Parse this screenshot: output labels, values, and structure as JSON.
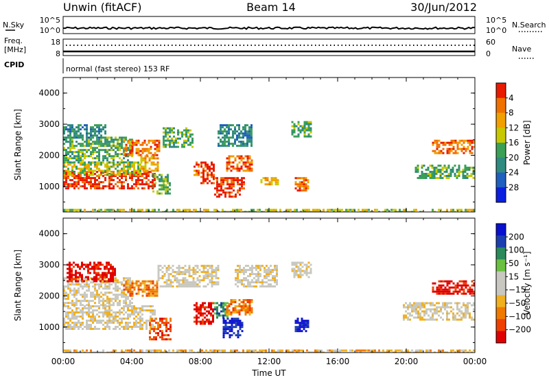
{
  "header": {
    "station": "Unwin (fitACF)",
    "beam": "Beam 14",
    "date": "30/Jun/2012"
  },
  "noise_panel": {
    "left_label": "N.Sky",
    "right_label": "N.Search",
    "left_ticks": [
      "10^5",
      "10^0"
    ],
    "right_ticks": [
      "10^5",
      "10^0"
    ]
  },
  "freq_panel": {
    "left_label_1": "Freq.",
    "left_label_2": "[MHz]",
    "right_label": "Nave",
    "left_ticks": [
      "18",
      "8"
    ],
    "right_ticks": [
      "60",
      "0"
    ]
  },
  "cpid_panel": {
    "label": "CPID",
    "text": "normal (fast stereo) 153 RF"
  },
  "colors": {
    "power_scale": [
      "#0a1fe0",
      "#1f5fbf",
      "#2f8a7f",
      "#3aa055",
      "#c8c800",
      "#f0a000",
      "#f07000",
      "#e81a00"
    ],
    "velocity_scale": [
      "#e00000",
      "#f04000",
      "#f07a00",
      "#f0b020",
      "#c8c8c0",
      "#c8c8c0",
      "#6ac040",
      "#2a8a5a",
      "#1c3fb0",
      "#0a10d0"
    ]
  },
  "chart_data": [
    {
      "type": "heatmap",
      "panel": "power",
      "xlabel": "",
      "ylabel": "Slant Range [km]",
      "xlim": [
        "00:00",
        "00:00"
      ],
      "ylim": [
        180,
        4500
      ],
      "yticks": [
        1000,
        2000,
        3000,
        4000
      ],
      "xticks": [
        "00:00",
        "04:00",
        "08:00",
        "12:00",
        "16:00",
        "20:00",
        "00:00"
      ],
      "colorbar": {
        "label": "Power [dB]",
        "ticks": [
          4,
          8,
          12,
          16,
          20,
          24,
          28
        ]
      },
      "regions": [
        {
          "t0": 0.0,
          "t1": 5.3,
          "r0": 950,
          "r1": 1500,
          "level": 7
        },
        {
          "t0": 0.0,
          "t1": 4.5,
          "r0": 1400,
          "r1": 1800,
          "level": 4
        },
        {
          "t0": 0.0,
          "t1": 4.0,
          "r0": 1800,
          "r1": 2600,
          "level": 3
        },
        {
          "t0": 0.0,
          "t1": 2.5,
          "r0": 2600,
          "r1": 3000,
          "level": 2
        },
        {
          "t0": 3.5,
          "t1": 5.6,
          "r0": 2000,
          "r1": 2500,
          "level": 6
        },
        {
          "t0": 4.5,
          "t1": 5.5,
          "r0": 1500,
          "r1": 2000,
          "level": 5
        },
        {
          "t0": 5.2,
          "t1": 6.2,
          "r0": 800,
          "r1": 1400,
          "level": 3
        },
        {
          "t0": 5.8,
          "t1": 7.5,
          "r0": 2300,
          "r1": 2900,
          "level": 3
        },
        {
          "t0": 7.6,
          "t1": 7.9,
          "r0": 1400,
          "r1": 1800,
          "level": 6
        },
        {
          "t0": 8.0,
          "t1": 8.8,
          "r0": 1100,
          "r1": 1800,
          "level": 7
        },
        {
          "t0": 8.8,
          "t1": 10.5,
          "r0": 700,
          "r1": 1300,
          "level": 7
        },
        {
          "t0": 9.0,
          "t1": 11.0,
          "r0": 2300,
          "r1": 3000,
          "level": 2
        },
        {
          "t0": 9.5,
          "t1": 11.0,
          "r0": 1500,
          "r1": 2000,
          "level": 6
        },
        {
          "t0": 11.5,
          "t1": 12.5,
          "r0": 1100,
          "r1": 1300,
          "level": 5
        },
        {
          "t0": 13.3,
          "t1": 14.5,
          "r0": 2600,
          "r1": 3100,
          "level": 3
        },
        {
          "t0": 13.5,
          "t1": 14.3,
          "r0": 850,
          "r1": 1300,
          "level": 6
        },
        {
          "t0": 20.5,
          "t1": 24.0,
          "r0": 1250,
          "r1": 1700,
          "level": 3
        },
        {
          "t0": 21.5,
          "t1": 24.0,
          "r0": 2050,
          "r1": 2500,
          "level": 6
        },
        {
          "t0": 0.0,
          "t1": 24.0,
          "r0": 180,
          "r1": 280,
          "level": 4
        }
      ]
    },
    {
      "type": "heatmap",
      "panel": "velocity",
      "xlabel": "Time UT",
      "ylabel": "Slant Range [km]",
      "xlim": [
        "00:00",
        "00:00"
      ],
      "ylim": [
        180,
        4500
      ],
      "yticks": [
        1000,
        2000,
        3000,
        4000
      ],
      "xticks": [
        "00:00",
        "04:00",
        "08:00",
        "12:00",
        "16:00",
        "20:00",
        "00:00"
      ],
      "colorbar": {
        "label": "Velocity [m s⁻¹]",
        "ticks": [
          200,
          100,
          50,
          15,
          -15,
          -50,
          -100,
          -200
        ]
      },
      "regions": [
        {
          "t0": 0.0,
          "t1": 5.3,
          "r0": 950,
          "r1": 1700,
          "level": 4
        },
        {
          "t0": 0.0,
          "t1": 4.0,
          "r0": 1700,
          "r1": 2600,
          "level": 4
        },
        {
          "t0": 0.2,
          "t1": 3.0,
          "r0": 2500,
          "r1": 3100,
          "level": 0
        },
        {
          "t0": 3.5,
          "t1": 5.5,
          "r0": 2000,
          "r1": 2500,
          "level": 2
        },
        {
          "t0": 5.0,
          "t1": 6.2,
          "r0": 600,
          "r1": 1300,
          "level": 1
        },
        {
          "t0": 5.5,
          "t1": 9.0,
          "r0": 2300,
          "r1": 3000,
          "level": 4
        },
        {
          "t0": 7.6,
          "t1": 8.8,
          "r0": 1100,
          "r1": 1800,
          "level": 0
        },
        {
          "t0": 8.8,
          "t1": 9.6,
          "r0": 1300,
          "r1": 1800,
          "level": 7
        },
        {
          "t0": 9.3,
          "t1": 10.5,
          "r0": 700,
          "r1": 1300,
          "level": 9
        },
        {
          "t0": 9.5,
          "t1": 11.0,
          "r0": 1400,
          "r1": 1900,
          "level": 2
        },
        {
          "t0": 10.0,
          "t1": 12.5,
          "r0": 2300,
          "r1": 3000,
          "level": 4
        },
        {
          "t0": 13.3,
          "t1": 14.5,
          "r0": 2600,
          "r1": 3100,
          "level": 4
        },
        {
          "t0": 13.5,
          "t1": 14.3,
          "r0": 850,
          "r1": 1300,
          "level": 9
        },
        {
          "t0": 19.8,
          "t1": 24.0,
          "r0": 1250,
          "r1": 1800,
          "level": 4
        },
        {
          "t0": 21.5,
          "t1": 24.0,
          "r0": 2050,
          "r1": 2500,
          "level": 0
        },
        {
          "t0": 0.0,
          "t1": 24.0,
          "r0": 180,
          "r1": 280,
          "level": 3
        }
      ]
    }
  ]
}
